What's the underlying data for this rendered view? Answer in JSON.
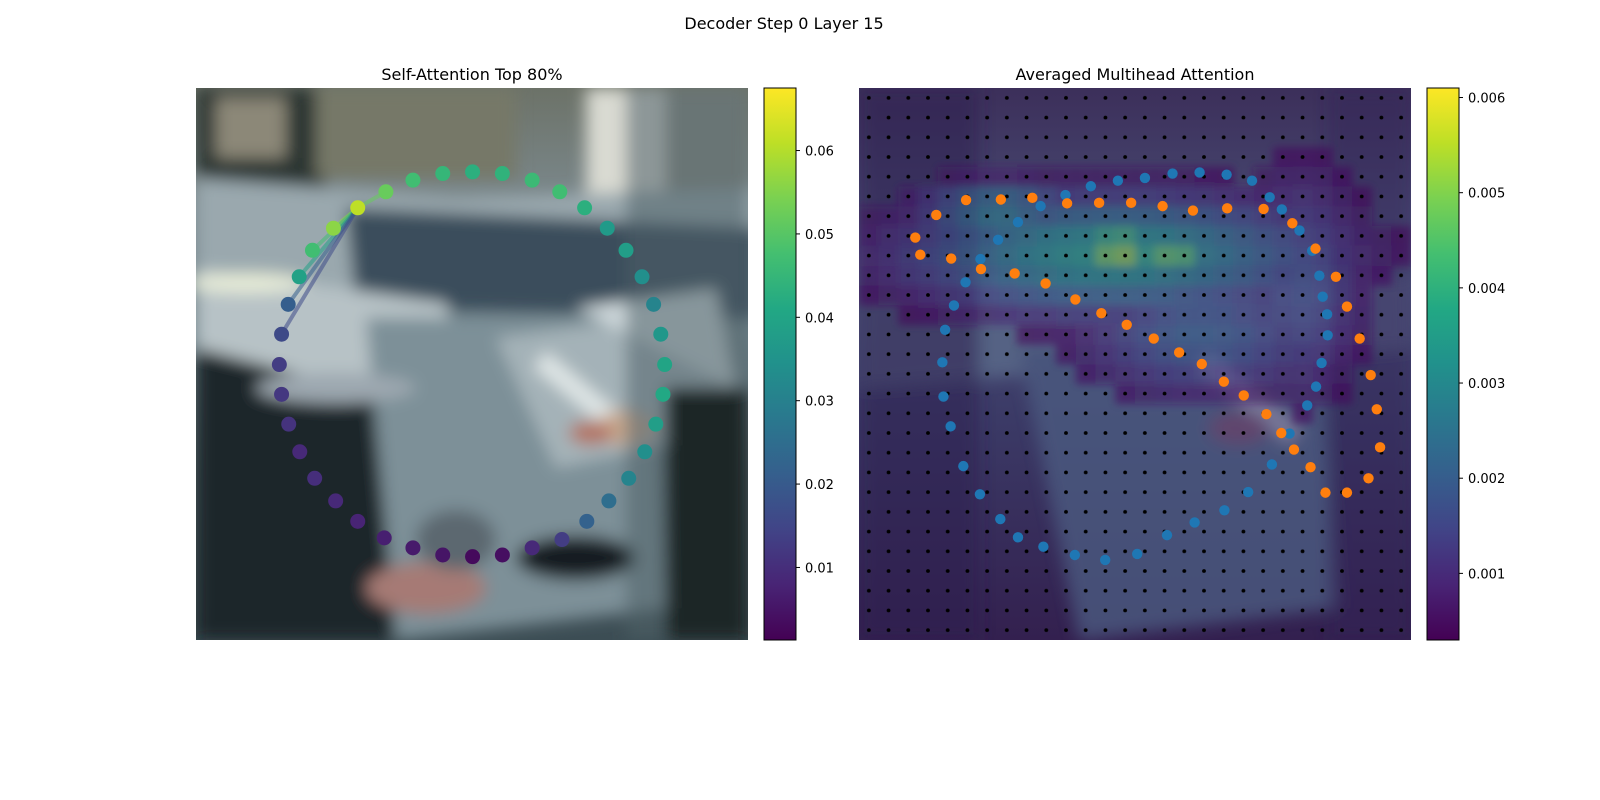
{
  "suptitle": "Decoder Step 0 Layer 15",
  "chart_data": [
    {
      "type": "scatter",
      "title": "Self-Attention Top 80%",
      "colormap": "viridis",
      "background": "image (parked cars, street scene)",
      "colorbar": {
        "min": 0.0013,
        "max": 0.0675,
        "ticks": [
          0.01,
          0.02,
          0.03,
          0.04,
          0.05,
          0.06
        ]
      },
      "query_point": 0,
      "points": [
        {
          "x": 0.293,
          "y": 0.217,
          "v": 0.061
        },
        {
          "x": 0.344,
          "y": 0.188,
          "v": 0.052
        },
        {
          "x": 0.393,
          "y": 0.167,
          "v": 0.047
        },
        {
          "x": 0.447,
          "y": 0.155,
          "v": 0.045
        },
        {
          "x": 0.501,
          "y": 0.152,
          "v": 0.043
        },
        {
          "x": 0.555,
          "y": 0.155,
          "v": 0.044
        },
        {
          "x": 0.609,
          "y": 0.167,
          "v": 0.046
        },
        {
          "x": 0.659,
          "y": 0.188,
          "v": 0.047
        },
        {
          "x": 0.704,
          "y": 0.217,
          "v": 0.043
        },
        {
          "x": 0.745,
          "y": 0.254,
          "v": 0.037
        },
        {
          "x": 0.779,
          "y": 0.294,
          "v": 0.038
        },
        {
          "x": 0.808,
          "y": 0.342,
          "v": 0.034
        },
        {
          "x": 0.829,
          "y": 0.392,
          "v": 0.031
        },
        {
          "x": 0.842,
          "y": 0.446,
          "v": 0.036
        },
        {
          "x": 0.849,
          "y": 0.501,
          "v": 0.04
        },
        {
          "x": 0.846,
          "y": 0.555,
          "v": 0.041
        },
        {
          "x": 0.833,
          "y": 0.609,
          "v": 0.038
        },
        {
          "x": 0.813,
          "y": 0.659,
          "v": 0.034
        },
        {
          "x": 0.784,
          "y": 0.707,
          "v": 0.031
        },
        {
          "x": 0.748,
          "y": 0.748,
          "v": 0.025
        },
        {
          "x": 0.708,
          "y": 0.785,
          "v": 0.022
        },
        {
          "x": 0.663,
          "y": 0.818,
          "v": 0.013
        },
        {
          "x": 0.609,
          "y": 0.833,
          "v": 0.009
        },
        {
          "x": 0.555,
          "y": 0.846,
          "v": 0.004
        },
        {
          "x": 0.501,
          "y": 0.849,
          "v": 0.003
        },
        {
          "x": 0.447,
          "y": 0.846,
          "v": 0.005
        },
        {
          "x": 0.393,
          "y": 0.833,
          "v": 0.006
        },
        {
          "x": 0.341,
          "y": 0.815,
          "v": 0.007
        },
        {
          "x": 0.293,
          "y": 0.785,
          "v": 0.008
        },
        {
          "x": 0.253,
          "y": 0.748,
          "v": 0.009
        },
        {
          "x": 0.215,
          "y": 0.707,
          "v": 0.01
        },
        {
          "x": 0.188,
          "y": 0.659,
          "v": 0.009
        },
        {
          "x": 0.168,
          "y": 0.609,
          "v": 0.011
        },
        {
          "x": 0.155,
          "y": 0.555,
          "v": 0.012
        },
        {
          "x": 0.151,
          "y": 0.501,
          "v": 0.013
        },
        {
          "x": 0.155,
          "y": 0.446,
          "v": 0.016
        },
        {
          "x": 0.167,
          "y": 0.392,
          "v": 0.021
        },
        {
          "x": 0.187,
          "y": 0.342,
          "v": 0.039
        },
        {
          "x": 0.211,
          "y": 0.294,
          "v": 0.047
        },
        {
          "x": 0.249,
          "y": 0.254,
          "v": 0.056
        }
      ],
      "attention_links": [
        {
          "to": 1,
          "v": 0.052
        },
        {
          "to": 39,
          "v": 0.056
        },
        {
          "to": 38,
          "v": 0.047
        },
        {
          "to": 37,
          "v": 0.039
        },
        {
          "to": 36,
          "v": 0.021
        },
        {
          "to": 35,
          "v": 0.016
        }
      ]
    },
    {
      "type": "heatmap",
      "title": "Averaged Multihead Attention",
      "colormap": "viridis",
      "background": "image with heatmap overlay and grid of sampling dots",
      "colorbar": {
        "min": 0.0003,
        "max": 0.0061,
        "ticks": [
          0.001,
          0.002,
          0.003,
          0.004,
          0.005,
          0.006
        ]
      },
      "grid_size": 28,
      "heat_blobs": [
        {
          "cx": 0.46,
          "cy": 0.3,
          "rx": 0.35,
          "ry": 0.1,
          "v": 0.0038
        },
        {
          "cx": 0.47,
          "cy": 0.29,
          "rx": 0.09,
          "ry": 0.04,
          "v": 0.0058
        },
        {
          "cx": 0.57,
          "cy": 0.31,
          "rx": 0.06,
          "ry": 0.03,
          "v": 0.0052
        },
        {
          "cx": 0.25,
          "cy": 0.22,
          "rx": 0.14,
          "ry": 0.05,
          "v": 0.003
        },
        {
          "cx": 0.62,
          "cy": 0.45,
          "rx": 0.2,
          "ry": 0.1,
          "v": 0.002
        },
        {
          "cx": 0.8,
          "cy": 0.35,
          "rx": 0.12,
          "ry": 0.2,
          "v": 0.0016
        }
      ],
      "series": [
        {
          "color": "#1f77b4",
          "points": [
            [
              0.156,
              0.438
            ],
            [
              0.172,
              0.394
            ],
            [
              0.193,
              0.352
            ],
            [
              0.22,
              0.31
            ],
            [
              0.252,
              0.275
            ],
            [
              0.288,
              0.243
            ],
            [
              0.329,
              0.214
            ],
            [
              0.374,
              0.194
            ],
            [
              0.42,
              0.178
            ],
            [
              0.469,
              0.168
            ],
            [
              0.518,
              0.163
            ],
            [
              0.568,
              0.155
            ],
            [
              0.617,
              0.153
            ],
            [
              0.666,
              0.157
            ],
            [
              0.712,
              0.168
            ],
            [
              0.744,
              0.198
            ],
            [
              0.766,
              0.22
            ],
            [
              0.798,
              0.258
            ],
            [
              0.821,
              0.295
            ],
            [
              0.834,
              0.34
            ],
            [
              0.84,
              0.378
            ],
            [
              0.848,
              0.41
            ],
            [
              0.849,
              0.448
            ],
            [
              0.838,
              0.498
            ],
            [
              0.828,
              0.541
            ],
            [
              0.812,
              0.575
            ],
            [
              0.78,
              0.626
            ],
            [
              0.748,
              0.682
            ],
            [
              0.705,
              0.732
            ],
            [
              0.662,
              0.765
            ],
            [
              0.608,
              0.787
            ],
            [
              0.558,
              0.81
            ],
            [
              0.504,
              0.844
            ],
            [
              0.446,
              0.855
            ],
            [
              0.391,
              0.846
            ],
            [
              0.334,
              0.831
            ],
            [
              0.288,
              0.814
            ],
            [
              0.256,
              0.781
            ],
            [
              0.219,
              0.736
            ],
            [
              0.189,
              0.685
            ],
            [
              0.166,
              0.613
            ],
            [
              0.153,
              0.559
            ],
            [
              0.151,
              0.497
            ]
          ]
        },
        {
          "color": "#ff7f0e",
          "points": [
            [
              0.102,
              0.271
            ],
            [
              0.14,
              0.23
            ],
            [
              0.194,
              0.203
            ],
            [
              0.257,
              0.202
            ],
            [
              0.314,
              0.199
            ],
            [
              0.377,
              0.209
            ],
            [
              0.435,
              0.208
            ],
            [
              0.493,
              0.208
            ],
            [
              0.55,
              0.214
            ],
            [
              0.605,
              0.222
            ],
            [
              0.667,
              0.218
            ],
            [
              0.733,
              0.219
            ],
            [
              0.785,
              0.245
            ],
            [
              0.827,
              0.291
            ],
            [
              0.864,
              0.342
            ],
            [
              0.884,
              0.396
            ],
            [
              0.907,
              0.454
            ],
            [
              0.927,
              0.52
            ],
            [
              0.938,
              0.582
            ],
            [
              0.944,
              0.651
            ],
            [
              0.923,
              0.707
            ],
            [
              0.884,
              0.733
            ],
            [
              0.845,
              0.733
            ],
            [
              0.818,
              0.687
            ],
            [
              0.788,
              0.655
            ],
            [
              0.765,
              0.625
            ],
            [
              0.738,
              0.591
            ],
            [
              0.697,
              0.557
            ],
            [
              0.661,
              0.532
            ],
            [
              0.621,
              0.5
            ],
            [
              0.58,
              0.479
            ],
            [
              0.534,
              0.454
            ],
            [
              0.485,
              0.429
            ],
            [
              0.439,
              0.408
            ],
            [
              0.392,
              0.383
            ],
            [
              0.338,
              0.354
            ],
            [
              0.282,
              0.336
            ],
            [
              0.221,
              0.328
            ],
            [
              0.167,
              0.309
            ],
            [
              0.111,
              0.302
            ]
          ]
        }
      ]
    }
  ]
}
